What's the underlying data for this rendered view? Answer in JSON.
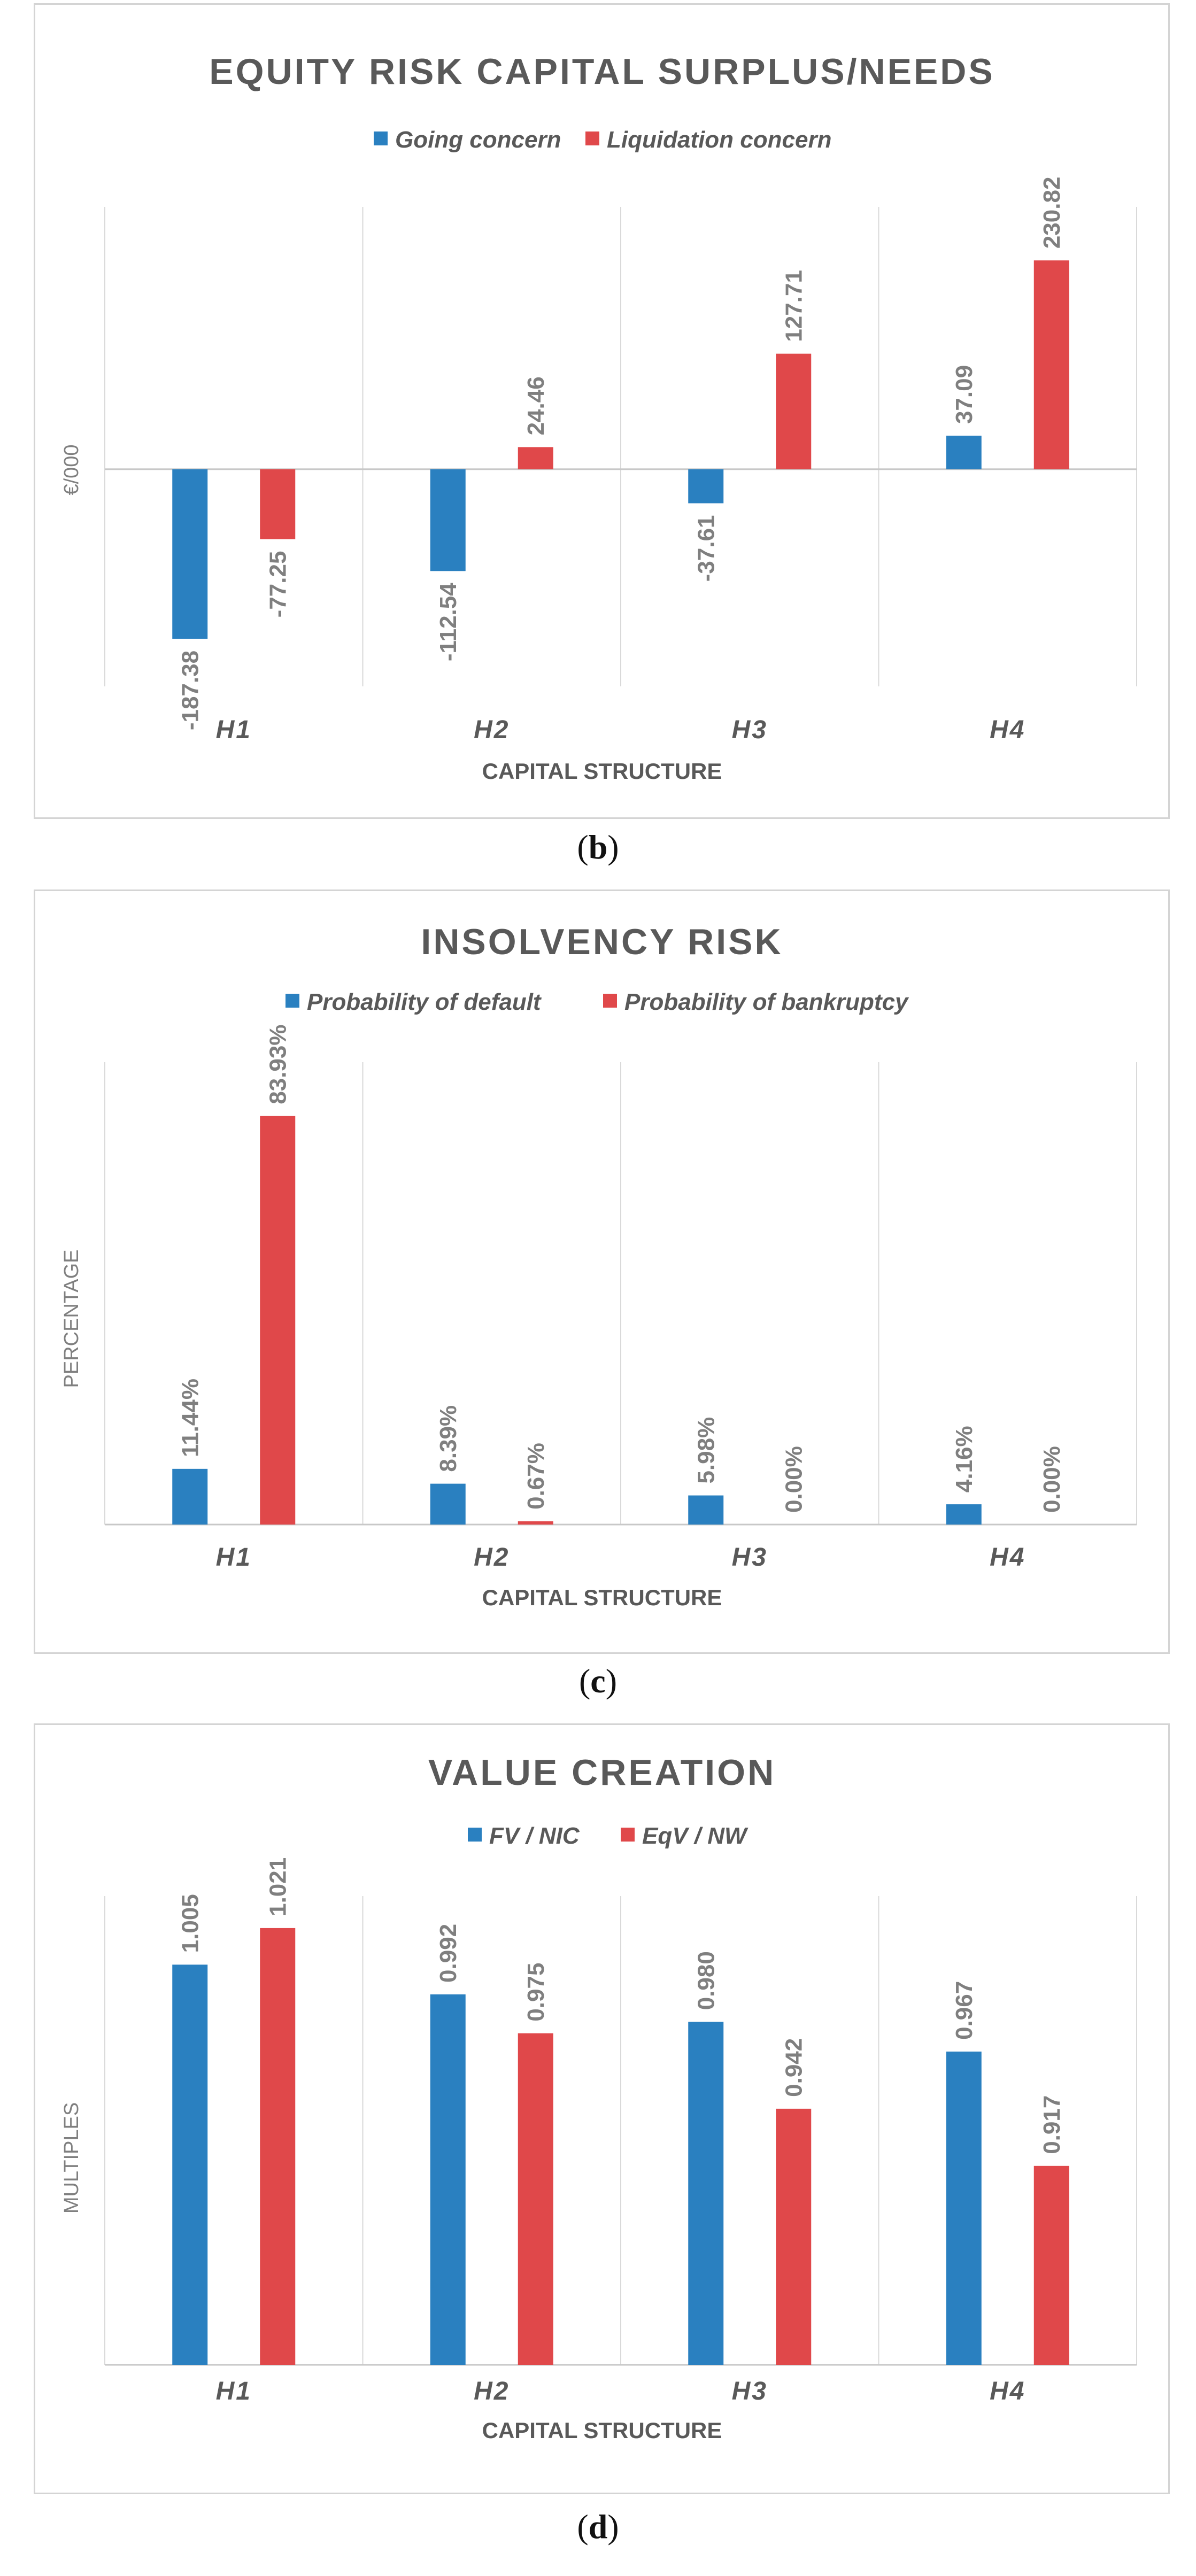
{
  "colors": {
    "series1": "#2a80c0",
    "series2": "#e0484a",
    "grid": "#d9d9d9",
    "axis": "#c8c8c8",
    "text": "#595959"
  },
  "chart_data": [
    {
      "type": "bar",
      "title": "EQUITY RISK CAPITAL SURPLUS/NEEDS",
      "caption_letter": "b",
      "xlabel": "CAPITAL STRUCTURE",
      "ylabel": "€/000",
      "ylim": [
        -240,
        290
      ],
      "grid": true,
      "legend_position": "top",
      "categories": [
        "H1",
        "H2",
        "H3",
        "H4"
      ],
      "series": [
        {
          "name": "Going concern",
          "values": [
            -187.38,
            -112.54,
            -37.61,
            37.09
          ],
          "labels": [
            "-187.38",
            "-112.54",
            "-37.61",
            "37.09"
          ]
        },
        {
          "name": "Liquidation concern",
          "values": [
            -77.25,
            24.46,
            127.71,
            230.82
          ],
          "labels": [
            "-77.25",
            "24.46",
            "127.71",
            "230.82"
          ]
        }
      ]
    },
    {
      "type": "bar",
      "title": "INSOLVENCY RISK",
      "caption_letter": "c",
      "xlabel": "CAPITAL STRUCTURE",
      "ylabel": "PERCENTAGE",
      "ylim": [
        0,
        95
      ],
      "grid": true,
      "legend_position": "top",
      "categories": [
        "H1",
        "H2",
        "H3",
        "H4"
      ],
      "series": [
        {
          "name": "Probability of default",
          "values": [
            11.44,
            8.39,
            5.98,
            4.16
          ],
          "labels": [
            "11.44%",
            "8.39%",
            "5.98%",
            "4.16%"
          ]
        },
        {
          "name": "Probability of bankruptcy",
          "values": [
            83.93,
            0.67,
            0.0,
            0.0
          ],
          "labels": [
            "83.93%",
            "0.67%",
            "0.00%",
            "0.00%"
          ]
        }
      ]
    },
    {
      "type": "bar",
      "title": "VALUE CREATION",
      "caption_letter": "d",
      "xlabel": "CAPITAL STRUCTURE",
      "ylabel": "MULTIPLES",
      "ylim": [
        0.83,
        1.035
      ],
      "grid": true,
      "legend_position": "top",
      "categories": [
        "H1",
        "H2",
        "H3",
        "H4"
      ],
      "series": [
        {
          "name": "FV / NIC",
          "values": [
            1.005,
            0.992,
            0.98,
            0.967
          ],
          "labels": [
            "1.005",
            "0.992",
            "0.980",
            "0.967"
          ]
        },
        {
          "name": "EqV / NW",
          "values": [
            1.021,
            0.975,
            0.942,
            0.917
          ],
          "labels": [
            "1.021",
            "0.975",
            "0.942",
            "0.917"
          ]
        }
      ]
    }
  ]
}
